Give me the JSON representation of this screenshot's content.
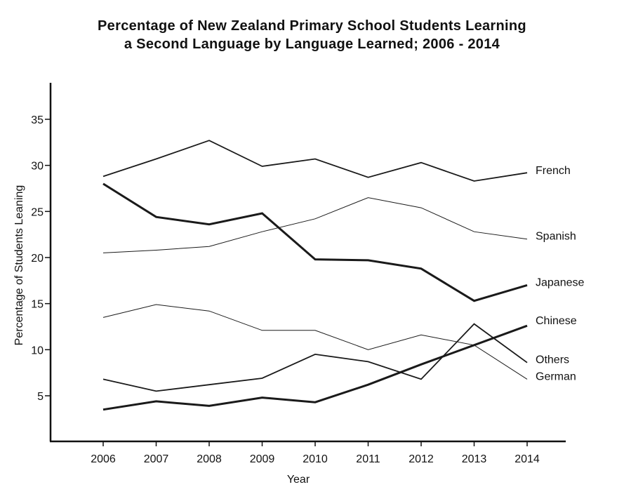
{
  "chart_data": {
    "type": "line",
    "title_line1": "Percentage of New Zealand Primary School Students Learning",
    "title_line2": "a Second Language by Language Learned; 2006 - 2014",
    "xlabel": "Year",
    "ylabel": "Percentage of Students Leaning",
    "categories": [
      "2006",
      "2007",
      "2008",
      "2009",
      "2010",
      "2011",
      "2012",
      "2013",
      "2014"
    ],
    "yticks": [
      5,
      10,
      15,
      20,
      25,
      30,
      35
    ],
    "ylim": [
      0,
      38
    ],
    "grid": false,
    "series": [
      {
        "name": "French",
        "values": [
          28.8,
          30.7,
          32.7,
          29.9,
          30.7,
          28.7,
          30.3,
          28.3,
          29.2
        ],
        "stroke": "#1a1a1a",
        "weight": 1.8
      },
      {
        "name": "Spanish",
        "values": [
          20.5,
          20.8,
          21.2,
          22.8,
          24.2,
          26.5,
          25.4,
          22.8,
          22.0
        ],
        "stroke": "#1a1a1a",
        "weight": 1.0
      },
      {
        "name": "Japanese",
        "values": [
          28.0,
          24.4,
          23.6,
          24.8,
          19.8,
          19.7,
          18.8,
          15.3,
          17.0
        ],
        "stroke": "#1a1a1a",
        "weight": 3.0
      },
      {
        "name": "Chinese",
        "values": [
          3.5,
          4.4,
          3.9,
          4.8,
          4.3,
          6.2,
          8.4,
          10.5,
          12.6
        ],
        "stroke": "#1a1a1a",
        "weight": 3.0
      },
      {
        "name": "Others",
        "values": [
          6.8,
          5.5,
          6.2,
          6.9,
          9.5,
          8.7,
          6.8,
          12.8,
          8.6
        ],
        "stroke": "#1a1a1a",
        "weight": 1.8
      },
      {
        "name": "German",
        "values": [
          13.5,
          14.9,
          14.2,
          12.1,
          12.1,
          10.0,
          11.6,
          10.5,
          6.8
        ],
        "stroke": "#1a1a1a",
        "weight": 1.0
      }
    ]
  }
}
